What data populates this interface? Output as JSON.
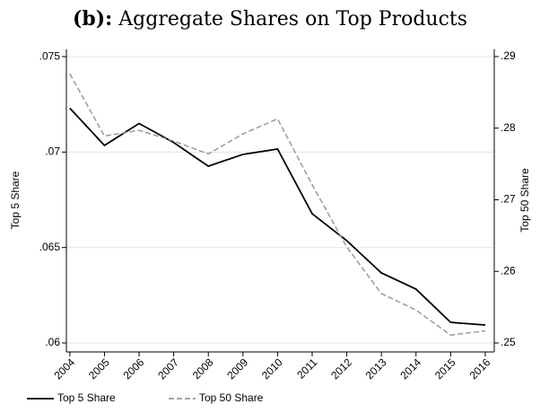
{
  "chart_data": {
    "type": "line",
    "panel": "(b):",
    "title": "Aggregate Shares on Top Products",
    "ylabel": "Top 5 Share",
    "y2label": "Top 50 Share",
    "x": [
      2004,
      2005,
      2006,
      2007,
      2008,
      2009,
      2010,
      2011,
      2012,
      2013,
      2014,
      2015,
      2016
    ],
    "xlim": [
      2003.9,
      2016.26
    ],
    "xticks": [
      2004,
      2005,
      2006,
      2007,
      2008,
      2009,
      2010,
      2011,
      2012,
      2013,
      2014,
      2015,
      2016
    ],
    "ylim": [
      0.05953,
      0.07538
    ],
    "yticks": [
      {
        "value": 0.06,
        "label": ".06"
      },
      {
        "value": 0.065,
        "label": ".065"
      },
      {
        "value": 0.07,
        "label": ".07"
      },
      {
        "value": 0.075,
        "label": ".075"
      }
    ],
    "y2lim": [
      0.24875,
      0.291
    ],
    "y2ticks": [
      {
        "value": 0.25,
        "label": ".25"
      },
      {
        "value": 0.26,
        "label": ".26"
      },
      {
        "value": 0.27,
        "label": ".27"
      },
      {
        "value": 0.28,
        "label": ".28"
      },
      {
        "value": 0.29,
        "label": ".29"
      }
    ],
    "grid": true,
    "legend": "bottom",
    "series": [
      {
        "name": "Top 5 Share",
        "color": "#000000",
        "dash": "solid",
        "axis": "y",
        "values": [
          0.0723,
          0.07035,
          0.0715,
          0.0705,
          0.06926,
          0.06988,
          0.07016,
          0.06677,
          0.06536,
          0.06367,
          0.06282,
          0.06108,
          0.06094
        ]
      },
      {
        "name": "Top 50 Share",
        "color": "#999999",
        "dash": "dashed",
        "axis": "y2",
        "values": [
          0.2876,
          0.2789,
          0.2797,
          0.2782,
          0.2764,
          0.2792,
          0.2813,
          0.2721,
          0.2634,
          0.2569,
          0.2546,
          0.2511,
          0.2517
        ]
      }
    ]
  }
}
